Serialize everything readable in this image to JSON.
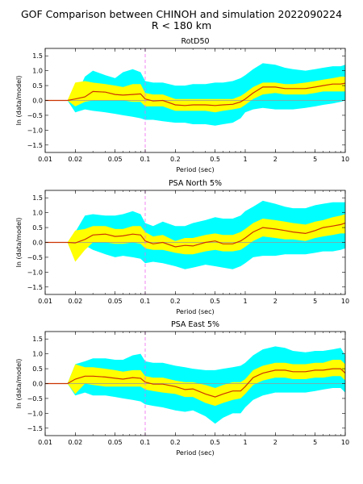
{
  "figure": {
    "title_line1": "GOF Comparison between CHINOH and simulation 2022090224",
    "title_line2": "R < 180 km"
  },
  "colors": {
    "outer_band": "#00ffff",
    "inner_band": "#ffff00",
    "mean_line": "#cc3300",
    "zero_line": "#999999",
    "marker_line": "#ee66ee"
  },
  "chart_data": [
    {
      "type": "area",
      "title": "RotD50",
      "xlabel": "Period (sec)",
      "ylabel": "ln (data/model)",
      "xscale": "log",
      "xlim": [
        0.01,
        10
      ],
      "ylim": [
        -1.75,
        1.75
      ],
      "xticks": [
        0.01,
        0.02,
        0.05,
        0.1,
        0.2,
        0.5,
        1,
        2,
        5,
        10
      ],
      "xtick_labels": [
        "0.01",
        "0.02",
        "0.05",
        "0.1",
        "0.2",
        "0.5",
        "1",
        "2",
        "5",
        "10"
      ],
      "yticks": [
        -1.5,
        -1.0,
        -0.5,
        0.0,
        0.5,
        1.0,
        1.5
      ],
      "ytick_labels": [
        "−1.5",
        "−1.0",
        "−0.5",
        "0.0",
        "0.5",
        "1.0",
        "1.5"
      ],
      "vline_x": 0.1,
      "x": [
        0.01,
        0.0167,
        0.02,
        0.025,
        0.03,
        0.04,
        0.05,
        0.06,
        0.075,
        0.09,
        0.1,
        0.12,
        0.15,
        0.2,
        0.25,
        0.3,
        0.4,
        0.5,
        0.6,
        0.75,
        0.9,
        1.0,
        1.2,
        1.5,
        2.0,
        2.5,
        3.0,
        4.0,
        5.0,
        6.0,
        7.5,
        9.0,
        10.0
      ],
      "mean": [
        0,
        0,
        0.05,
        0.12,
        0.3,
        0.28,
        0.2,
        0.18,
        0.2,
        0.22,
        0.05,
        -0.02,
        0.0,
        -0.15,
        -0.17,
        -0.15,
        -0.15,
        -0.17,
        -0.15,
        -0.13,
        -0.05,
        0.05,
        0.25,
        0.45,
        0.45,
        0.4,
        0.4,
        0.4,
        0.45,
        0.5,
        0.55,
        0.55,
        0.58
      ],
      "inner_lo": [
        0,
        0,
        -0.2,
        -0.05,
        0.0,
        0.0,
        0.0,
        0.0,
        -0.05,
        -0.05,
        -0.2,
        -0.2,
        -0.2,
        -0.35,
        -0.35,
        -0.35,
        -0.35,
        -0.4,
        -0.35,
        -0.3,
        -0.25,
        -0.15,
        0.05,
        0.2,
        0.25,
        0.2,
        0.2,
        0.2,
        0.25,
        0.3,
        0.3,
        0.3,
        0.3
      ],
      "inner_hi": [
        0,
        0,
        0.6,
        0.65,
        0.6,
        0.55,
        0.5,
        0.45,
        0.55,
        0.55,
        0.25,
        0.2,
        0.2,
        0.05,
        0.05,
        0.05,
        0.05,
        0.05,
        0.05,
        0.05,
        0.15,
        0.25,
        0.45,
        0.6,
        0.6,
        0.55,
        0.55,
        0.6,
        0.65,
        0.7,
        0.75,
        0.8,
        0.8
      ],
      "outer_lo": [
        0,
        0,
        -0.4,
        -0.3,
        -0.35,
        -0.4,
        -0.45,
        -0.5,
        -0.55,
        -0.6,
        -0.65,
        -0.65,
        -0.7,
        -0.75,
        -0.75,
        -0.8,
        -0.8,
        -0.85,
        -0.8,
        -0.75,
        -0.6,
        -0.4,
        -0.3,
        -0.25,
        -0.3,
        -0.3,
        -0.3,
        -0.25,
        -0.2,
        -0.15,
        -0.1,
        -0.05,
        0.0
      ],
      "outer_hi": [
        0,
        0,
        0.1,
        0.8,
        1.0,
        0.85,
        0.75,
        0.95,
        1.05,
        0.95,
        0.65,
        0.6,
        0.6,
        0.5,
        0.5,
        0.55,
        0.55,
        0.6,
        0.6,
        0.65,
        0.75,
        0.85,
        1.05,
        1.25,
        1.2,
        1.1,
        1.05,
        1.0,
        1.05,
        1.1,
        1.15,
        1.15,
        1.2
      ]
    },
    {
      "type": "area",
      "title": "PSA North 5%",
      "xlabel": "Period (sec)",
      "ylabel": "ln (data/model)",
      "xscale": "log",
      "xlim": [
        0.01,
        10
      ],
      "ylim": [
        -1.75,
        1.75
      ],
      "xticks": [
        0.01,
        0.02,
        0.05,
        0.1,
        0.2,
        0.5,
        1,
        2,
        5,
        10
      ],
      "xtick_labels": [
        "0.01",
        "0.02",
        "0.05",
        "0.1",
        "0.2",
        "0.5",
        "1",
        "2",
        "5",
        "10"
      ],
      "yticks": [
        -1.5,
        -1.0,
        -0.5,
        0.0,
        0.5,
        1.0,
        1.5
      ],
      "ytick_labels": [
        "−1.5",
        "−1.0",
        "−0.5",
        "0.0",
        "0.5",
        "1.0",
        "1.5"
      ],
      "vline_x": 0.1,
      "x": [
        0.01,
        0.0167,
        0.02,
        0.025,
        0.03,
        0.04,
        0.05,
        0.06,
        0.075,
        0.09,
        0.1,
        0.12,
        0.15,
        0.2,
        0.25,
        0.3,
        0.4,
        0.5,
        0.6,
        0.75,
        0.9,
        1.0,
        1.2,
        1.5,
        2.0,
        2.5,
        3.0,
        4.0,
        5.0,
        6.0,
        7.5,
        9.0,
        10.0
      ],
      "mean": [
        0,
        0,
        -0.02,
        0.1,
        0.25,
        0.28,
        0.2,
        0.22,
        0.28,
        0.25,
        0.05,
        -0.05,
        0.0,
        -0.15,
        -0.1,
        -0.12,
        0.0,
        0.05,
        -0.05,
        -0.05,
        0.05,
        0.15,
        0.35,
        0.5,
        0.45,
        0.4,
        0.35,
        0.3,
        0.4,
        0.5,
        0.55,
        0.6,
        0.65
      ],
      "inner_lo": [
        0,
        0,
        -0.65,
        -0.25,
        0.0,
        0.0,
        -0.05,
        -0.05,
        0.0,
        -0.05,
        -0.2,
        -0.25,
        -0.25,
        -0.35,
        -0.4,
        -0.4,
        -0.3,
        -0.25,
        -0.3,
        -0.3,
        -0.25,
        -0.15,
        0.05,
        0.2,
        0.15,
        0.1,
        0.1,
        0.05,
        0.15,
        0.2,
        0.25,
        0.3,
        0.3
      ],
      "inner_hi": [
        0,
        0,
        0.4,
        0.45,
        0.55,
        0.55,
        0.45,
        0.45,
        0.55,
        0.55,
        0.35,
        0.2,
        0.25,
        0.05,
        0.15,
        0.15,
        0.25,
        0.3,
        0.25,
        0.25,
        0.35,
        0.45,
        0.65,
        0.8,
        0.75,
        0.7,
        0.65,
        0.6,
        0.7,
        0.75,
        0.85,
        0.9,
        0.95
      ],
      "outer_lo": [
        0,
        0,
        -0.6,
        -0.1,
        -0.25,
        -0.4,
        -0.5,
        -0.45,
        -0.5,
        -0.55,
        -0.7,
        -0.65,
        -0.7,
        -0.8,
        -0.9,
        -0.85,
        -0.75,
        -0.8,
        -0.85,
        -0.9,
        -0.8,
        -0.7,
        -0.5,
        -0.45,
        -0.45,
        -0.4,
        -0.4,
        -0.4,
        -0.35,
        -0.3,
        -0.3,
        -0.25,
        -0.2
      ],
      "outer_hi": [
        0,
        0,
        0.35,
        0.9,
        0.95,
        0.9,
        0.9,
        0.95,
        1.05,
        0.95,
        0.65,
        0.55,
        0.7,
        0.55,
        0.55,
        0.65,
        0.75,
        0.85,
        0.8,
        0.8,
        0.9,
        1.05,
        1.2,
        1.4,
        1.3,
        1.2,
        1.15,
        1.15,
        1.25,
        1.3,
        1.35,
        1.35,
        1.35
      ]
    },
    {
      "type": "area",
      "title": "PSA East 5%",
      "xlabel": "Period (sec)",
      "ylabel": "ln (data/model)",
      "xscale": "log",
      "xlim": [
        0.01,
        10
      ],
      "ylim": [
        -1.75,
        1.75
      ],
      "xticks": [
        0.01,
        0.02,
        0.05,
        0.1,
        0.2,
        0.5,
        1,
        2,
        5,
        10
      ],
      "xtick_labels": [
        "0.01",
        "0.02",
        "0.05",
        "0.1",
        "0.2",
        "0.5",
        "1",
        "2",
        "5",
        "10"
      ],
      "yticks": [
        -1.5,
        -1.0,
        -0.5,
        0.0,
        0.5,
        1.0,
        1.5
      ],
      "ytick_labels": [
        "−1.5",
        "−1.0",
        "−0.5",
        "0.0",
        "0.5",
        "1.0",
        "1.5"
      ],
      "vline_x": 0.1,
      "x": [
        0.01,
        0.0167,
        0.02,
        0.025,
        0.03,
        0.04,
        0.05,
        0.06,
        0.075,
        0.09,
        0.1,
        0.12,
        0.15,
        0.2,
        0.25,
        0.3,
        0.4,
        0.5,
        0.6,
        0.75,
        0.9,
        1.0,
        1.2,
        1.5,
        2.0,
        2.5,
        3.0,
        4.0,
        5.0,
        6.0,
        7.5,
        9.0,
        10.0
      ],
      "mean": [
        0,
        0,
        0.15,
        0.25,
        0.25,
        0.22,
        0.18,
        0.15,
        0.2,
        0.18,
        0.05,
        -0.02,
        -0.02,
        -0.1,
        -0.2,
        -0.18,
        -0.35,
        -0.45,
        -0.35,
        -0.25,
        -0.25,
        -0.1,
        0.2,
        0.35,
        0.45,
        0.45,
        0.4,
        0.4,
        0.45,
        0.45,
        0.5,
        0.5,
        0.35
      ],
      "inner_lo": [
        0,
        0,
        -0.35,
        0.0,
        -0.05,
        -0.1,
        -0.1,
        -0.1,
        -0.1,
        -0.1,
        -0.2,
        -0.25,
        -0.3,
        -0.35,
        -0.45,
        -0.45,
        -0.65,
        -0.75,
        -0.65,
        -0.55,
        -0.5,
        -0.35,
        -0.05,
        0.1,
        0.2,
        0.2,
        0.15,
        0.15,
        0.2,
        0.2,
        0.25,
        0.25,
        0.1
      ],
      "inner_hi": [
        0,
        0,
        0.65,
        0.55,
        0.55,
        0.5,
        0.45,
        0.4,
        0.45,
        0.45,
        0.25,
        0.2,
        0.2,
        0.1,
        0.05,
        0.05,
        -0.05,
        -0.15,
        -0.05,
        0.05,
        0.05,
        0.15,
        0.45,
        0.6,
        0.7,
        0.7,
        0.65,
        0.65,
        0.7,
        0.7,
        0.8,
        0.8,
        0.65
      ],
      "outer_lo": [
        0,
        0,
        -0.4,
        -0.3,
        -0.4,
        -0.4,
        -0.45,
        -0.5,
        -0.55,
        -0.6,
        -0.7,
        -0.75,
        -0.8,
        -0.9,
        -0.95,
        -0.9,
        -1.1,
        -1.35,
        -1.15,
        -1.0,
        -1.0,
        -0.8,
        -0.55,
        -0.4,
        -0.3,
        -0.3,
        -0.3,
        -0.3,
        -0.25,
        -0.2,
        -0.15,
        -0.15,
        -0.3
      ],
      "outer_hi": [
        0,
        0,
        0.65,
        0.75,
        0.85,
        0.85,
        0.8,
        0.8,
        0.95,
        1.0,
        0.75,
        0.7,
        0.7,
        0.6,
        0.55,
        0.5,
        0.45,
        0.45,
        0.5,
        0.55,
        0.6,
        0.7,
        0.95,
        1.15,
        1.25,
        1.2,
        1.1,
        1.05,
        1.1,
        1.1,
        1.15,
        1.2,
        0.95
      ]
    }
  ]
}
